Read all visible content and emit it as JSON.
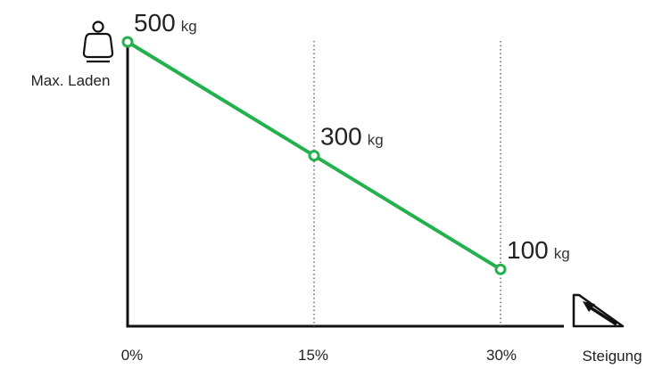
{
  "chart_data": {
    "type": "line",
    "x": [
      "0%",
      "15%",
      "30%"
    ],
    "x_values": [
      0,
      15,
      30
    ],
    "series": [
      {
        "values": [
          500,
          300,
          100
        ],
        "data_labels": [
          "500",
          "300",
          "100"
        ],
        "unit": "kg"
      }
    ],
    "xlabel": "Steigung",
    "ylabel": "Max. Laden",
    "xlim": [
      0,
      30
    ],
    "ylim": [
      0,
      500
    ],
    "grid": "vertical dotted lines at 15% and 30%",
    "colors": {
      "line": "#22b14c",
      "axis": "#111111",
      "grid": "#555555",
      "text": "#222222"
    },
    "icons": {
      "y_axis": "weight-person-icon",
      "x_axis": "slope-icon"
    }
  }
}
